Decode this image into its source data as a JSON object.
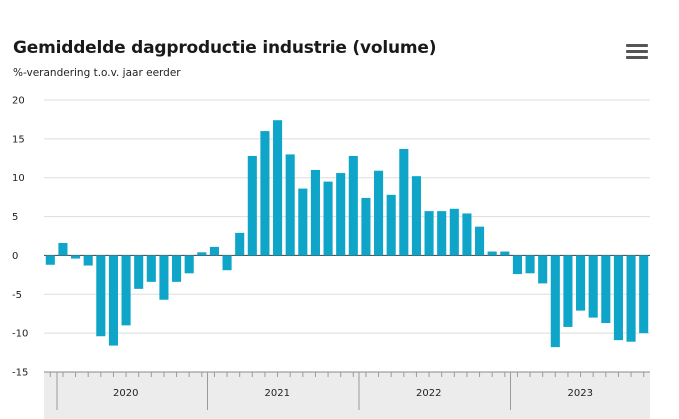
{
  "chart": {
    "title": "Gemiddelde dagproductie industrie (volume)",
    "subtitle": "%-verandering t.o.v. jaar eerder",
    "menu_icon": "hamburger-menu-icon"
  },
  "chart_data": {
    "type": "bar",
    "title": "Gemiddelde dagproductie industrie (volume)",
    "subtitle": "%-verandering t.o.v. jaar eerder",
    "xlabel": "",
    "ylabel": "",
    "ylim": [
      -15,
      20
    ],
    "yticks": [
      20,
      15,
      10,
      5,
      0,
      -5,
      -10,
      -15
    ],
    "grid": true,
    "year_labels": [
      "2020",
      "2021",
      "2022",
      "2023"
    ],
    "bar_color": "#0ea5c9",
    "series": [
      {
        "values": [
          -1.2,
          1.6,
          -0.4,
          -1.3,
          -10.4,
          -11.6,
          -9.0,
          -4.3,
          -3.4,
          -5.7,
          -3.4,
          -2.3,
          0.4,
          1.1,
          -1.9,
          2.9,
          12.8,
          16.0,
          17.4,
          13.0,
          8.6,
          11.0,
          9.5,
          10.6,
          12.8,
          7.4,
          10.9,
          7.8,
          13.7,
          10.2,
          5.7,
          5.7,
          6.0,
          5.4,
          3.7,
          0.5,
          0.5,
          -2.4,
          -2.3,
          -3.6,
          -11.8,
          -9.2,
          -7.1,
          -8.0,
          -8.7,
          -10.9,
          -11.1,
          -10.0
        ]
      }
    ]
  }
}
